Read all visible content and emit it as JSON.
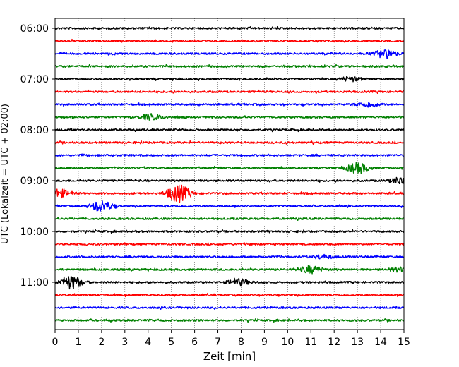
{
  "chart_data": {
    "type": "line",
    "title": "",
    "xlabel": "Zeit  [min]",
    "ylabel": "UTC (Lokalzeit = UTC + 02:00)",
    "xlim": [
      0,
      15
    ],
    "x_ticks": [
      0,
      1,
      2,
      3,
      4,
      5,
      6,
      7,
      8,
      9,
      10,
      11,
      12,
      13,
      14,
      15
    ],
    "y_tick_labels": [
      "06:00",
      "07:00",
      "08:00",
      "09:00",
      "10:00",
      "11:00"
    ],
    "vertical_grid": true,
    "trace_colors": [
      "#000000",
      "#ff0000",
      "#0000ff",
      "#008000"
    ],
    "traces": [
      {
        "start": "06:00",
        "color": "#000000",
        "events": []
      },
      {
        "start": "06:15",
        "color": "#ff0000",
        "events": []
      },
      {
        "start": "06:30",
        "color": "#0000ff",
        "events": [
          {
            "minute": 14.2,
            "amplitude": 0.7
          }
        ]
      },
      {
        "start": "06:45",
        "color": "#008000",
        "events": []
      },
      {
        "start": "07:00",
        "color": "#000000",
        "events": [
          {
            "minute": 12.7,
            "amplitude": 0.35
          }
        ]
      },
      {
        "start": "07:15",
        "color": "#ff0000",
        "events": []
      },
      {
        "start": "07:30",
        "color": "#0000ff",
        "events": [
          {
            "minute": 13.5,
            "amplitude": 0.4
          }
        ]
      },
      {
        "start": "07:45",
        "color": "#008000",
        "events": [
          {
            "minute": 4.1,
            "amplitude": 0.45
          }
        ]
      },
      {
        "start": "08:00",
        "color": "#000000",
        "events": []
      },
      {
        "start": "08:15",
        "color": "#ff0000",
        "events": []
      },
      {
        "start": "08:30",
        "color": "#0000ff",
        "events": []
      },
      {
        "start": "08:45",
        "color": "#008000",
        "events": [
          {
            "minute": 13.0,
            "amplitude": 0.85
          }
        ]
      },
      {
        "start": "09:00",
        "color": "#000000",
        "events": [
          {
            "minute": 14.9,
            "amplitude": 0.6
          }
        ]
      },
      {
        "start": "09:15",
        "color": "#ff0000",
        "events": [
          {
            "minute": 0.2,
            "amplitude": 0.7
          },
          {
            "minute": 5.3,
            "amplitude": 1.5
          }
        ]
      },
      {
        "start": "09:30",
        "color": "#0000ff",
        "events": [
          {
            "minute": 2.0,
            "amplitude": 0.9
          }
        ]
      },
      {
        "start": "09:45",
        "color": "#008000",
        "events": []
      },
      {
        "start": "10:00",
        "color": "#000000",
        "events": []
      },
      {
        "start": "10:15",
        "color": "#ff0000",
        "events": []
      },
      {
        "start": "10:30",
        "color": "#0000ff",
        "events": [
          {
            "minute": 11.5,
            "amplitude": 0.3
          }
        ]
      },
      {
        "start": "10:45",
        "color": "#008000",
        "events": [
          {
            "minute": 11.0,
            "amplitude": 0.6
          },
          {
            "minute": 14.8,
            "amplitude": 0.35
          }
        ]
      },
      {
        "start": "11:00",
        "color": "#000000",
        "events": [
          {
            "minute": 0.7,
            "amplitude": 1.1
          },
          {
            "minute": 7.9,
            "amplitude": 0.5
          }
        ]
      },
      {
        "start": "11:15",
        "color": "#ff0000",
        "events": []
      },
      {
        "start": "11:30",
        "color": "#0000ff",
        "events": []
      },
      {
        "start": "11:45",
        "color": "#008000",
        "events": []
      }
    ]
  }
}
